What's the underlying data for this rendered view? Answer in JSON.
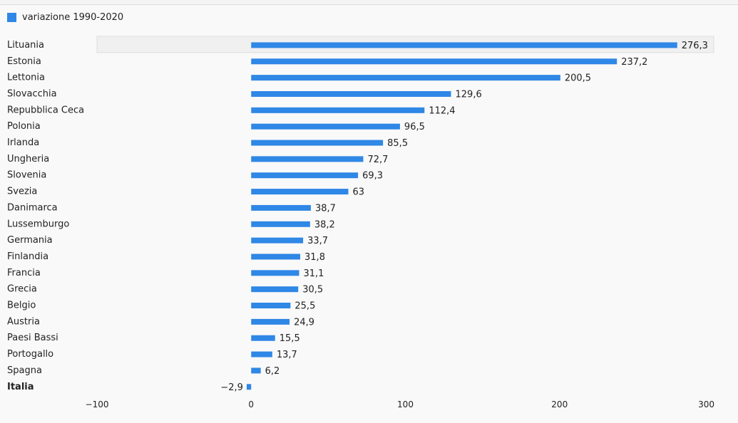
{
  "legend": {
    "label": "variazione 1990-2020",
    "color": "#2f87e6"
  },
  "highlight_row_color": "#f0f0f0",
  "emphasized_category": "Italia",
  "chart_data": {
    "type": "bar",
    "orientation": "horizontal",
    "categories": [
      "Lituania",
      "Estonia",
      "Lettonia",
      "Slovacchia",
      "Repubblica Ceca",
      "Polonia",
      "Irlanda",
      "Ungheria",
      "Slovenia",
      "Svezia",
      "Danimarca",
      "Lussemburgo",
      "Germania",
      "Finlandia",
      "Francia",
      "Grecia",
      "Belgio",
      "Austria",
      "Paesi Bassi",
      "Portogallo",
      "Spagna",
      "Italia"
    ],
    "series": [
      {
        "name": "variazione 1990-2020",
        "values": [
          276.3,
          237.2,
          200.5,
          129.6,
          112.4,
          96.5,
          85.5,
          72.7,
          69.3,
          63,
          38.7,
          38.2,
          33.7,
          31.8,
          31.1,
          30.5,
          25.5,
          24.9,
          15.5,
          13.7,
          6.2,
          -2.9
        ],
        "value_labels": [
          "276,3",
          "237,2",
          "200,5",
          "129,6",
          "112,4",
          "96,5",
          "85,5",
          "72,7",
          "69,3",
          "63",
          "38,7",
          "38,2",
          "33,7",
          "31,8",
          "31,1",
          "30,5",
          "25,5",
          "24,9",
          "15,5",
          "13,7",
          "6,2",
          "−2,9"
        ]
      }
    ],
    "xlim": [
      -100,
      300
    ],
    "xticks": [
      -100,
      0,
      100,
      200,
      300
    ],
    "xtick_labels": [
      "−100",
      "0",
      "100",
      "200",
      "300"
    ],
    "grid": false,
    "legend_position": "top-left"
  }
}
